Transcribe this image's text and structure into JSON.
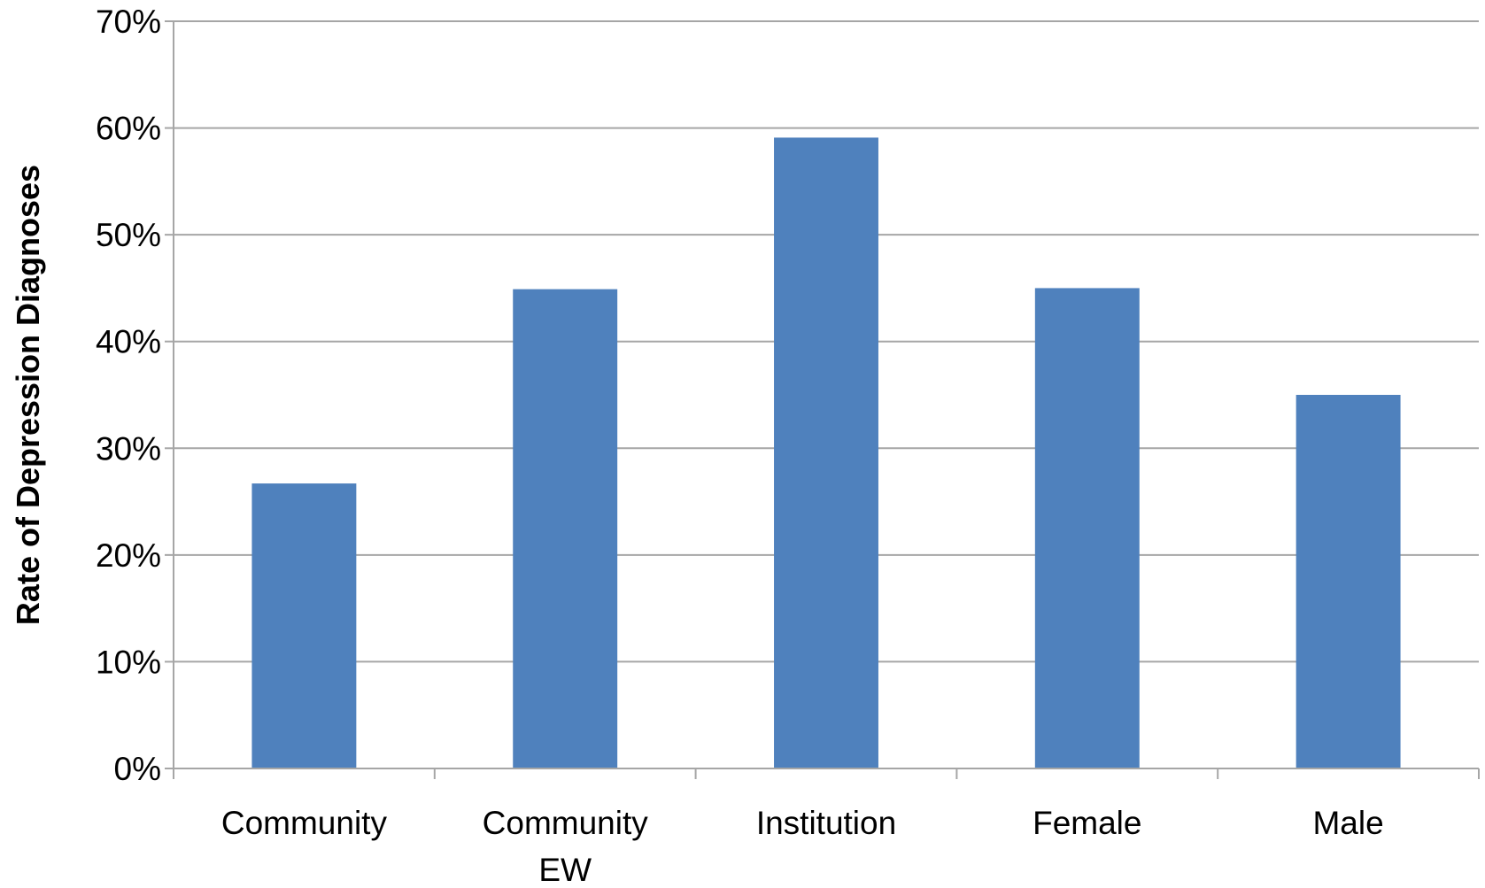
{
  "chart_data": {
    "type": "bar",
    "categories": [
      [
        "Community"
      ],
      [
        "Community",
        "EW"
      ],
      [
        "Institution"
      ],
      [
        "Female"
      ],
      [
        "Male"
      ]
    ],
    "values": [
      0.267,
      0.449,
      0.591,
      0.45,
      0.35
    ],
    "ylabel": "Rate of Depression Diagnoses",
    "xlabel": "",
    "ylim": [
      0,
      0.7
    ],
    "yticks": [
      0,
      0.1,
      0.2,
      0.3,
      0.4,
      0.5,
      0.6,
      0.7
    ],
    "ytick_labels": [
      "0%",
      "10%",
      "20%",
      "30%",
      "40%",
      "50%",
      "60%",
      "70%"
    ],
    "grid": true,
    "legend": "none",
    "bar_color": "#4f81bd"
  }
}
